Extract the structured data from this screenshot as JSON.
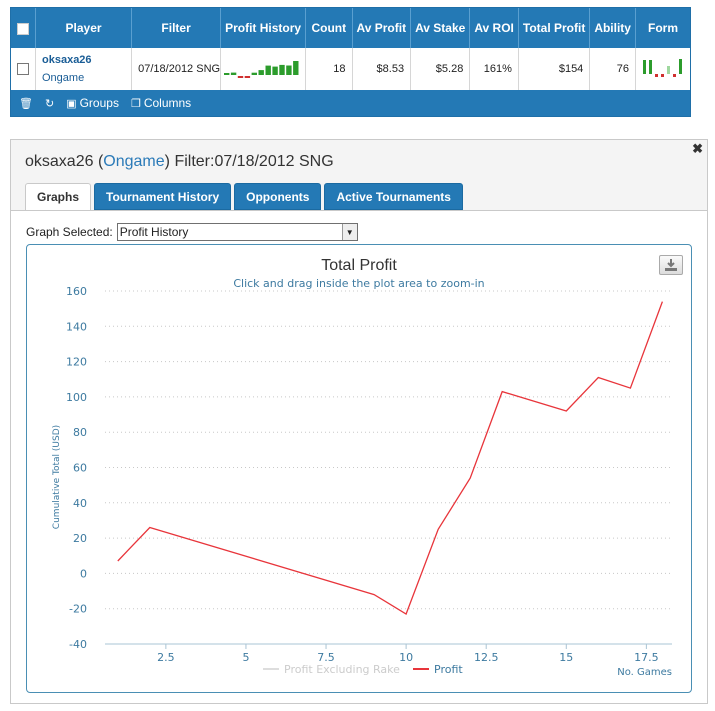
{
  "grid": {
    "columns": [
      "Player",
      "Filter",
      "Profit History",
      "Count",
      "Av Profit",
      "Av Stake",
      "Av ROI",
      "Total Profit",
      "Ability",
      "Form"
    ],
    "row": {
      "player": "oksaxa26",
      "site": "Ongame",
      "filter": "07/18/2012 SNG",
      "count": "18",
      "av_profit": "$8.53",
      "av_stake": "$5.28",
      "av_roi": "161%",
      "total_profit": "$154",
      "ability": "76"
    },
    "footer": {
      "groups": "Groups",
      "columns": "Columns"
    }
  },
  "panel": {
    "player": "oksaxa26",
    "site": "Ongame",
    "filter_label": "Filter:07/18/2012 SNG",
    "tabs": [
      "Graphs",
      "Tournament History",
      "Opponents",
      "Active Tournaments"
    ],
    "active_tab": "Graphs",
    "graph_selected_label": "Graph Selected:",
    "graph_selected_value": "Profit History"
  },
  "colors": {
    "header_blue": "#2479b5",
    "profit_line": "#e8353b",
    "axis_text": "#3d7aa0"
  },
  "chart_data": {
    "type": "line",
    "title": "Total Profit",
    "subtitle": "Click and drag inside the plot area to zoom-in",
    "xlabel": "No. Games",
    "ylabel": "Cumulative Total (USD)",
    "xlim": [
      0.6,
      18.3
    ],
    "ylim": [
      -40,
      160
    ],
    "xticks": [
      2.5,
      5,
      7.5,
      10,
      12.5,
      15,
      17.5
    ],
    "xtick_labels": [
      "2.5",
      "5",
      "7.5",
      "10",
      "12.5",
      "15",
      "17.5"
    ],
    "yticks": [
      -40,
      -20,
      0,
      20,
      40,
      60,
      80,
      100,
      120,
      140,
      160
    ],
    "ytick_labels": [
      "-40",
      "-20",
      "0",
      "20",
      "40",
      "60",
      "80",
      "100",
      "120",
      "140",
      "160"
    ],
    "grid": "horizontal-dotted",
    "legend_position": "bottom-center",
    "series": [
      {
        "name": "Profit Excluding Rake",
        "color": "#dddddd",
        "values": []
      },
      {
        "name": "Profit",
        "color": "#e8353b",
        "x": [
          1,
          2,
          9,
          10,
          11,
          12,
          13,
          15,
          16,
          17,
          18
        ],
        "values": [
          7,
          26,
          -12,
          -23,
          25,
          54,
          103,
          92,
          111,
          105,
          154
        ]
      }
    ]
  }
}
